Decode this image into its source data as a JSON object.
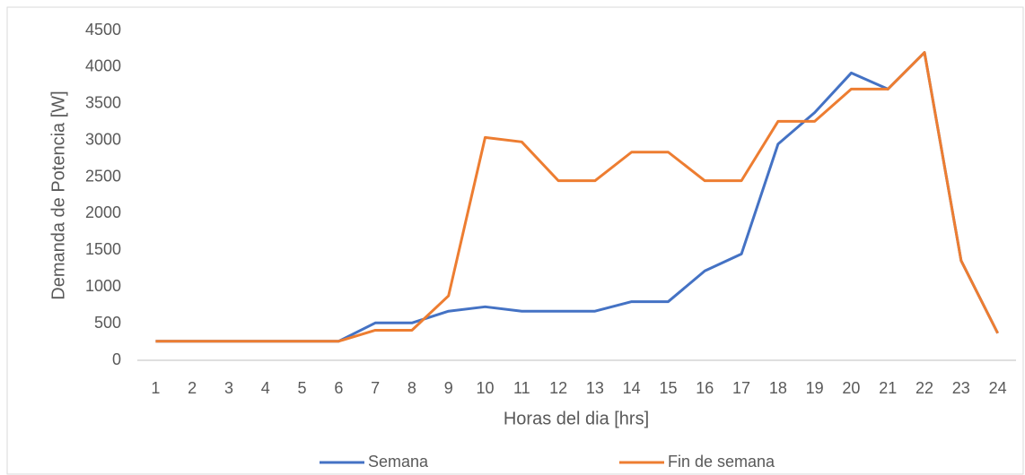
{
  "chart_data": {
    "type": "line",
    "x_label": "Horas del dia [hrs]",
    "y_label": "Demanda de Potencia  [W]",
    "categories": [
      "1",
      "2",
      "3",
      "4",
      "5",
      "6",
      "7",
      "8",
      "9",
      "10",
      "11",
      "12",
      "13",
      "14",
      "15",
      "16",
      "17",
      "18",
      "19",
      "20",
      "21",
      "22",
      "23",
      "24"
    ],
    "series": [
      {
        "name": "Semana",
        "color": "#4472c4",
        "values": [
          260,
          260,
          260,
          260,
          260,
          260,
          510,
          510,
          670,
          730,
          670,
          670,
          670,
          800,
          800,
          1220,
          1450,
          2950,
          3380,
          3920,
          3700,
          4200,
          1360,
          370
        ]
      },
      {
        "name": "Fin de semana",
        "color": "#ed7d31",
        "values": [
          260,
          260,
          260,
          260,
          260,
          260,
          410,
          410,
          880,
          3040,
          2980,
          2450,
          2450,
          2840,
          2840,
          2450,
          2450,
          3260,
          3260,
          3700,
          3700,
          4200,
          1360,
          370
        ]
      }
    ],
    "ylim": [
      0,
      4500
    ],
    "yticks": [
      0,
      500,
      1000,
      1500,
      2000,
      2500,
      3000,
      3500,
      4000,
      4500
    ],
    "grid": false,
    "legend": "bottom"
  }
}
